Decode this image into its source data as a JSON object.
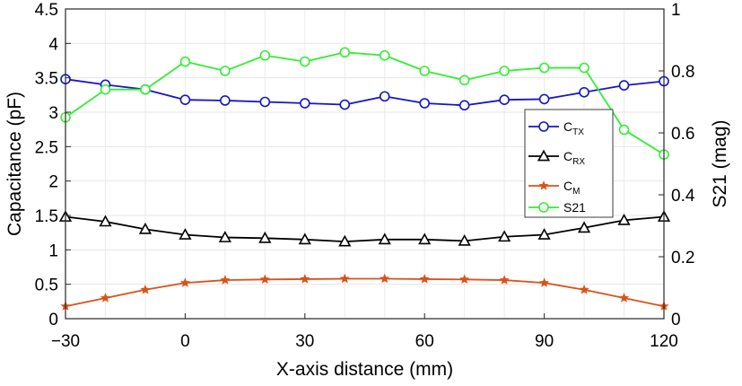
{
  "chart_data": {
    "type": "line",
    "xlabel": "X-axis distance (mm)",
    "ylabel": "Capacitance (pF)",
    "y2label": "S21 (mag)",
    "xlim": [
      -30,
      120
    ],
    "ylim": [
      0,
      4.5
    ],
    "y2lim": [
      0,
      1
    ],
    "xticks": [
      -30,
      0,
      30,
      60,
      90,
      120
    ],
    "xtick_labels": [
      "−30",
      "0",
      "30",
      "60",
      "90",
      "120"
    ],
    "yticks": [
      0,
      0.5,
      1,
      1.5,
      2,
      2.5,
      3,
      3.5,
      4,
      4.5
    ],
    "ytick_labels": [
      "0",
      "0.5",
      "1",
      "1.5",
      "2",
      "2.5",
      "3",
      "3.5",
      "4",
      "4.5"
    ],
    "y2ticks": [
      0,
      0.2,
      0.4,
      0.6,
      0.8,
      1
    ],
    "y2tick_labels": [
      "0",
      "0.2",
      "0.4",
      "0.6",
      "0.8",
      "1"
    ],
    "grid": true,
    "legend_position": "right",
    "x": [
      -30,
      -20,
      -10,
      0,
      10,
      20,
      30,
      40,
      50,
      60,
      70,
      80,
      90,
      100,
      110,
      120
    ],
    "series": [
      {
        "name": "C_TX",
        "label_main": "C",
        "label_sub": "TX",
        "axis": "left",
        "color": "#1515c8",
        "marker": "circle",
        "values": [
          3.48,
          3.4,
          3.33,
          3.18,
          3.17,
          3.15,
          3.13,
          3.11,
          3.23,
          3.13,
          3.1,
          3.18,
          3.19,
          3.29,
          3.39,
          3.45
        ]
      },
      {
        "name": "C_RX",
        "label_main": "C",
        "label_sub": "RX",
        "axis": "left",
        "color": "#000000",
        "marker": "triangle",
        "values": [
          1.48,
          1.41,
          1.3,
          1.22,
          1.18,
          1.17,
          1.15,
          1.12,
          1.15,
          1.15,
          1.13,
          1.19,
          1.22,
          1.32,
          1.43,
          1.48
        ]
      },
      {
        "name": "C_M",
        "label_main": "C",
        "label_sub": "M",
        "axis": "left",
        "color": "#d95319",
        "marker": "star",
        "values": [
          0.18,
          0.3,
          0.42,
          0.52,
          0.56,
          0.57,
          0.575,
          0.58,
          0.58,
          0.575,
          0.57,
          0.56,
          0.52,
          0.42,
          0.3,
          0.18
        ]
      },
      {
        "name": "S21",
        "label_main": "S21",
        "label_sub": "",
        "axis": "right",
        "color": "#33ee33",
        "marker": "circle",
        "values": [
          0.65,
          0.74,
          0.74,
          0.83,
          0.8,
          0.85,
          0.83,
          0.86,
          0.85,
          0.8,
          0.77,
          0.8,
          0.81,
          0.81,
          0.61,
          0.53
        ]
      }
    ]
  }
}
